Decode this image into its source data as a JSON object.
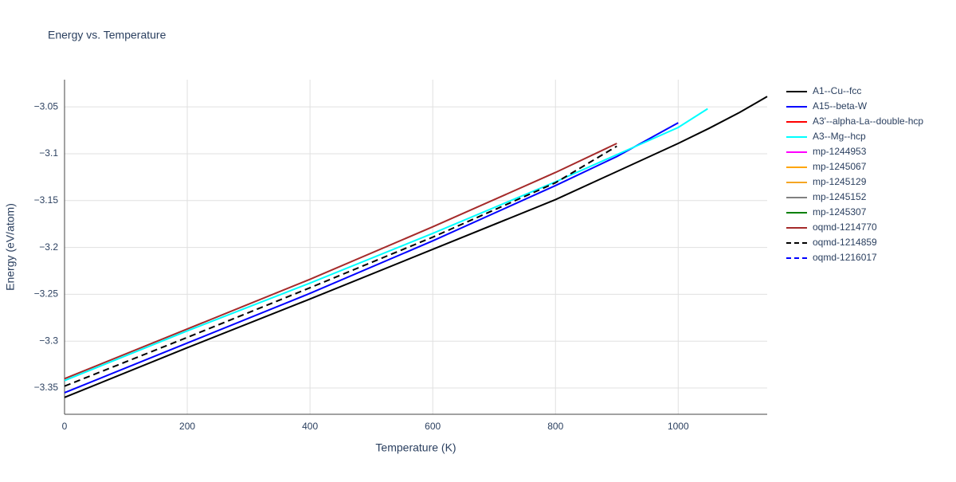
{
  "chart_data": {
    "type": "line",
    "title": "Energy vs. Temperature",
    "x_label": "Temperature (K)",
    "y_label": "Energy (eV/atom)",
    "xlim": [
      0,
      1145
    ],
    "ylim": [
      -3.378,
      -3.021
    ],
    "xticks": [
      0,
      200,
      400,
      600,
      800,
      1000
    ],
    "yticks": [
      {
        "value": -3.35,
        "label": "−3.35"
      },
      {
        "value": -3.3,
        "label": "−3.3"
      },
      {
        "value": -3.25,
        "label": "−3.25"
      },
      {
        "value": -3.2,
        "label": "−3.2"
      },
      {
        "value": -3.15,
        "label": "−3.15"
      },
      {
        "value": -3.1,
        "label": "−3.1"
      },
      {
        "value": -3.05,
        "label": "−3.05"
      }
    ],
    "grid": true,
    "legend": "right",
    "series": [
      {
        "name": "A1--Cu--fcc",
        "color": "#000000",
        "x": [
          0,
          200,
          400,
          600,
          800,
          1000,
          1050,
          1100,
          1145
        ],
        "values": [
          -3.36,
          -3.307,
          -3.255,
          -3.202,
          -3.149,
          -3.089,
          -3.073,
          -3.056,
          -3.039
        ]
      },
      {
        "name": "A15--beta-W",
        "color": "#0000ff",
        "x": [
          0,
          200,
          400,
          600,
          800,
          900,
          1000
        ],
        "values": [
          -3.355,
          -3.302,
          -3.249,
          -3.193,
          -3.134,
          -3.103,
          -3.067
        ]
      },
      {
        "name": "A3'--alpha-La--double-hcp",
        "color": "#ff0000",
        "x": [],
        "values": []
      },
      {
        "name": "A3--Mg--hcp",
        "color": "#00ffff",
        "x": [
          0,
          200,
          400,
          600,
          800,
          900,
          1000,
          1048
        ],
        "values": [
          -3.342,
          -3.289,
          -3.238,
          -3.185,
          -3.13,
          -3.101,
          -3.072,
          -3.052
        ]
      },
      {
        "name": "mp-1244953",
        "color": "#ff00ff",
        "x": [],
        "values": []
      },
      {
        "name": "mp-1245067",
        "color": "#ffa500",
        "x": [],
        "values": []
      },
      {
        "name": "mp-1245129",
        "color": "#f5a623",
        "x": [],
        "values": []
      },
      {
        "name": "mp-1245152",
        "color": "#808080",
        "x": [],
        "values": []
      },
      {
        "name": "mp-1245307",
        "color": "#008000",
        "x": [],
        "values": []
      },
      {
        "name": "oqmd-1214770",
        "color": "#a52a2a",
        "x": [
          0,
          200,
          400,
          600,
          800,
          900
        ],
        "values": [
          -3.34,
          -3.287,
          -3.234,
          -3.178,
          -3.12,
          -3.089
        ]
      },
      {
        "name": "oqmd-1214859",
        "color": "#000000",
        "dash": true,
        "x": [
          0,
          200,
          400,
          600,
          800,
          900
        ],
        "values": [
          -3.348,
          -3.296,
          -3.243,
          -3.189,
          -3.131,
          -3.092
        ]
      },
      {
        "name": "oqmd-1216017",
        "color": "#0000ff",
        "dash": true,
        "x": [],
        "values": []
      }
    ]
  }
}
